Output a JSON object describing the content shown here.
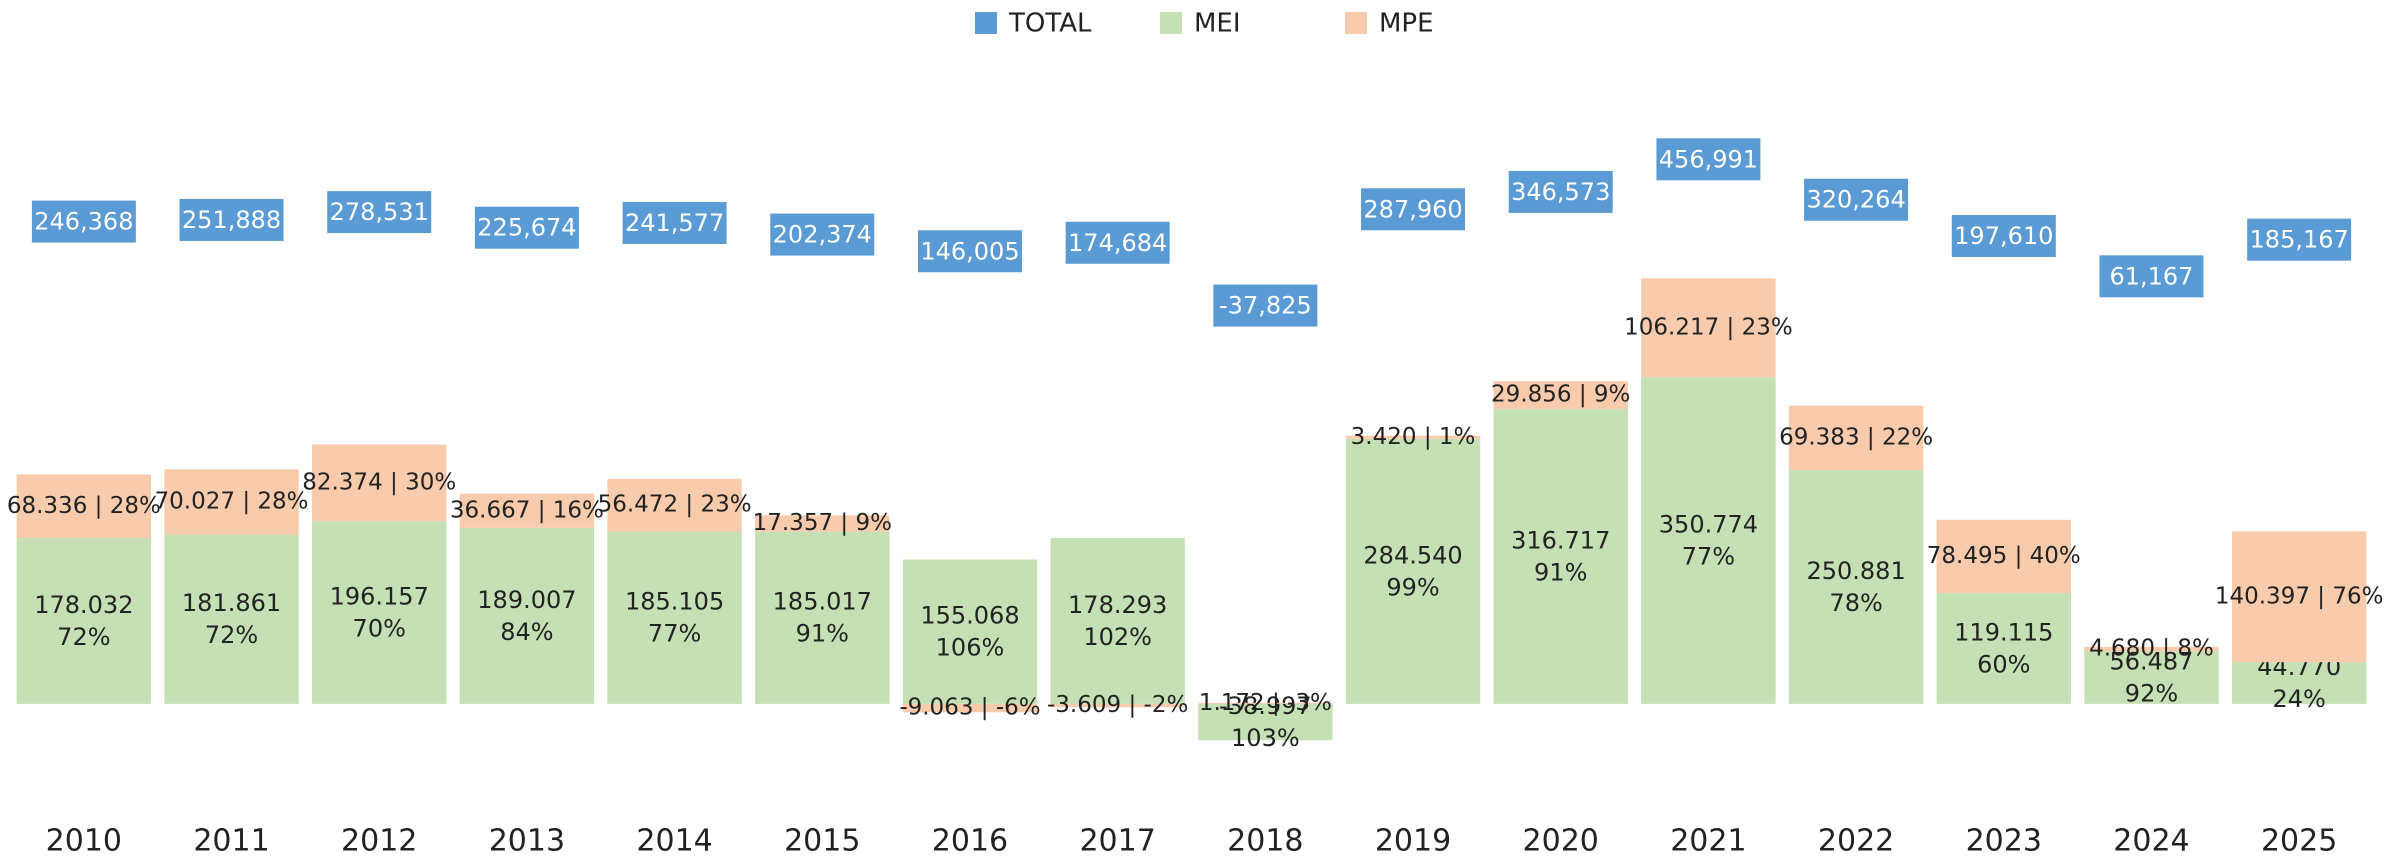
{
  "chart_data": {
    "type": "stacked_bar",
    "categories": [
      "2010",
      "2011",
      "2012",
      "2013",
      "2014",
      "2015",
      "2016",
      "2017",
      "2018",
      "2019",
      "2020",
      "2021",
      "2022",
      "2023",
      "2024",
      "2025"
    ],
    "series": [
      {
        "name": "MEI",
        "color": "#c5e0b4",
        "values": [
          178032,
          181861,
          196157,
          189007,
          185105,
          185017,
          155068,
          178293,
          -38997,
          284540,
          316717,
          350774,
          250881,
          119115,
          56487,
          44770
        ],
        "value_labels": [
          [
            "178.032",
            "72%"
          ],
          [
            "181.861",
            "72%"
          ],
          [
            "196.157",
            "70%"
          ],
          [
            "189.007",
            "84%"
          ],
          [
            "185.105",
            "77%"
          ],
          [
            "185.017",
            "91%"
          ],
          [
            "155.068",
            "106%"
          ],
          [
            "178.293",
            "102%"
          ],
          [
            "-38.997",
            "103%"
          ],
          [
            "284.540",
            "99%"
          ],
          [
            "316.717",
            "91%"
          ],
          [
            "350.774",
            "77%"
          ],
          [
            "250.881",
            "78%"
          ],
          [
            "119.115",
            "60%"
          ],
          [
            "56.487",
            "92%"
          ],
          [
            "44.770",
            "24%"
          ]
        ]
      },
      {
        "name": "MPE",
        "color": "#f8cbad",
        "values": [
          68336,
          70027,
          82374,
          36667,
          56472,
          17357,
          -9063,
          -3609,
          1172,
          3420,
          29856,
          106217,
          69383,
          78495,
          4680,
          140397
        ],
        "value_labels": [
          "68.336 | 28%",
          "70.027 | 28%",
          "82.374 | 30%",
          "36.667 | 16%",
          "56.472 | 23%",
          "17.357 | 9%",
          "-9.063 | -6%",
          "-3.609 | -2%",
          "1.172 | -3%",
          "3.420 | 1%",
          "29.856 | 9%",
          "106.217 | 23%",
          "69.383 | 22%",
          "78.495 | 40%",
          "4.680 | 8%",
          "140.397 | 76%"
        ]
      },
      {
        "name": "TOTAL",
        "color": "#5b9bd5",
        "axis": "y2",
        "values": [
          246368,
          251888,
          278531,
          225674,
          241577,
          202374,
          146005,
          174684,
          -37825,
          287960,
          346573,
          456991,
          320264,
          197610,
          61167,
          185167
        ],
        "value_labels": [
          "246,368",
          "251,888",
          "278,531",
          "225,674",
          "241,577",
          "202,374",
          "146,005",
          "174,684",
          "-37,825",
          "287,960",
          "346,573",
          "456,991",
          "320,264",
          "197,610",
          "61,167",
          "185,167"
        ]
      }
    ],
    "legend_order": [
      2,
      0,
      1
    ],
    "ylim": [
      -100000,
      700000
    ],
    "y2lim": [
      -1700000,
      820000
    ]
  }
}
